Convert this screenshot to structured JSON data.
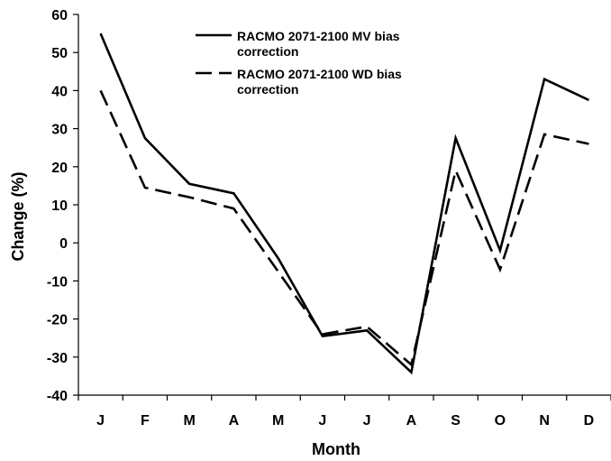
{
  "chart_data": {
    "type": "line",
    "categories": [
      "J",
      "F",
      "M",
      "A",
      "M",
      "J",
      "J",
      "A",
      "S",
      "O",
      "N",
      "D"
    ],
    "xlabel": "Month",
    "ylabel": "Change (%)",
    "ylim": [
      -40,
      60
    ],
    "yticks": [
      -40,
      -30,
      -20,
      -10,
      0,
      10,
      20,
      30,
      40,
      50,
      60
    ],
    "grid": false,
    "legend_position": "top-center",
    "series": [
      {
        "name": "RACMO 2071-2100 MV bias correction",
        "legend_lines": [
          "RACMO 2071-2100 MV bias",
          "correction"
        ],
        "style": "solid",
        "color": "#000000",
        "values": [
          55,
          27.5,
          15.5,
          13,
          -4,
          -24.5,
          -23,
          -34,
          27.5,
          -2,
          43,
          37.5
        ]
      },
      {
        "name": "RACMO 2071-2100 WD bias correction",
        "legend_lines": [
          "RACMO 2071-2100 WD bias",
          "correction"
        ],
        "style": "dashed",
        "color": "#000000",
        "values": [
          40,
          14.5,
          12,
          9,
          -7.5,
          -24,
          -22,
          -32,
          19,
          -7,
          28.5,
          26
        ]
      }
    ]
  }
}
